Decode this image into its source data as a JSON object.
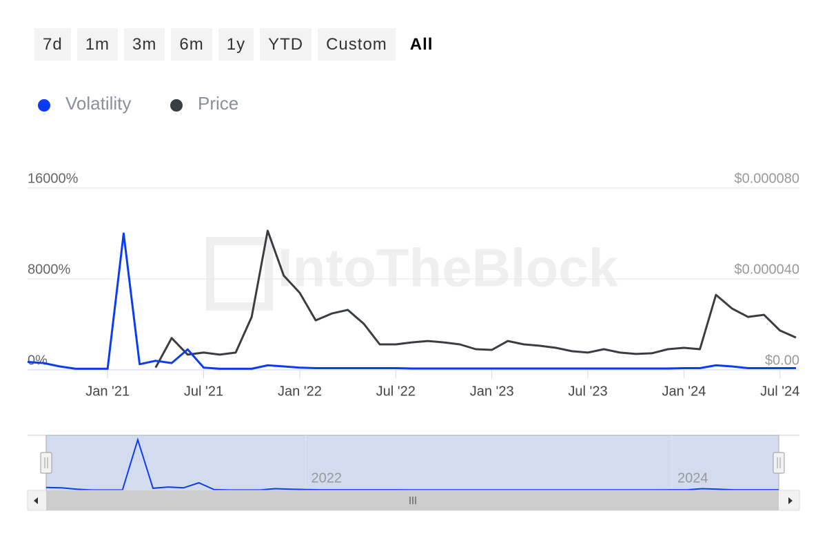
{
  "ranges": [
    "7d",
    "1m",
    "3m",
    "6m",
    "1y",
    "YTD",
    "Custom",
    "All"
  ],
  "selected_range": 7,
  "chart_data": {
    "type": "line",
    "watermark": "IntoTheBlock",
    "x": [
      "2020-08",
      "2020-09",
      "2020-10",
      "2020-11",
      "2020-12",
      "2021-01",
      "2021-02",
      "2021-03",
      "2021-04",
      "2021-05",
      "2021-06",
      "2021-07",
      "2021-08",
      "2021-09",
      "2021-10",
      "2021-11",
      "2021-12",
      "2022-01",
      "2022-02",
      "2022-03",
      "2022-04",
      "2022-05",
      "2022-06",
      "2022-07",
      "2022-08",
      "2022-09",
      "2022-10",
      "2022-11",
      "2022-12",
      "2023-01",
      "2023-02",
      "2023-03",
      "2023-04",
      "2023-05",
      "2023-06",
      "2023-07",
      "2023-08",
      "2023-09",
      "2023-10",
      "2023-11",
      "2023-12",
      "2024-01",
      "2024-02",
      "2024-03",
      "2024-04",
      "2024-05",
      "2024-06",
      "2024-07",
      "2024-08"
    ],
    "series": [
      {
        "name": "Price",
        "color": "#3a3d42",
        "axis": "y2",
        "values": [
          null,
          null,
          null,
          null,
          null,
          null,
          null,
          null,
          1e-06,
          1.4e-05,
          6.7e-06,
          7.6e-06,
          6.7e-06,
          7.6e-06,
          2.33e-05,
          6.12e-05,
          4.15e-05,
          3.39e-05,
          2.18e-05,
          2.48e-05,
          2.64e-05,
          2.03e-05,
          1.12e-05,
          1.12e-05,
          1.21e-05,
          1.27e-05,
          1.21e-05,
          1.12e-05,
          9.1e-06,
          8.8e-06,
          1.27e-05,
          1.12e-05,
          1.06e-05,
          9.7e-06,
          8.2e-06,
          7.6e-06,
          9.1e-06,
          7.6e-06,
          7e-06,
          7.3e-06,
          9.1e-06,
          9.7e-06,
          9.1e-06,
          3.3e-05,
          2.7e-05,
          2.33e-05,
          2.42e-05,
          1.73e-05,
          1.42e-05
        ]
      },
      {
        "name": "Volatility",
        "color": "#0a3cf5",
        "values": [
          700,
          600,
          300,
          100,
          100,
          100,
          12000,
          500,
          800,
          600,
          1800,
          200,
          100,
          100,
          100,
          400,
          300,
          200,
          150,
          150,
          150,
          150,
          150,
          150,
          120,
          120,
          120,
          120,
          120,
          120,
          120,
          120,
          120,
          120,
          120,
          120,
          120,
          120,
          120,
          120,
          120,
          150,
          150,
          400,
          300,
          150,
          150,
          150,
          150
        ]
      }
    ],
    "legend": [
      1,
      0
    ],
    "xlim": [
      "2020-08",
      "2024-08"
    ],
    "xticks": [
      {
        "value": "2021-01",
        "label": "Jan '21"
      },
      {
        "value": "2021-07",
        "label": "Jul '21"
      },
      {
        "value": "2022-01",
        "label": "Jan '22"
      },
      {
        "value": "2022-07",
        "label": "Jul '22"
      },
      {
        "value": "2023-01",
        "label": "Jan '23"
      },
      {
        "value": "2023-07",
        "label": "Jul '23"
      },
      {
        "value": "2024-01",
        "label": "Jan '24"
      },
      {
        "value": "2024-07",
        "label": "Jul '24"
      }
    ],
    "ylim": [
      0,
      16000
    ],
    "yticks": [
      {
        "value": 0,
        "label": "0%"
      },
      {
        "value": 8000,
        "label": "8000%"
      },
      {
        "value": 16000,
        "label": "16000%"
      }
    ],
    "y2lim": [
      0,
      8e-05
    ],
    "y2ticks": [
      {
        "value": 0,
        "label": "$0.00"
      },
      {
        "value": 4e-05,
        "label": "$0.000040"
      },
      {
        "value": 8e-05,
        "label": "$0.000080"
      }
    ],
    "grid": true,
    "navigator_ticks": [
      {
        "value": "2022-01",
        "label": "2022"
      },
      {
        "value": "2024-01",
        "label": "2024"
      }
    ]
  }
}
